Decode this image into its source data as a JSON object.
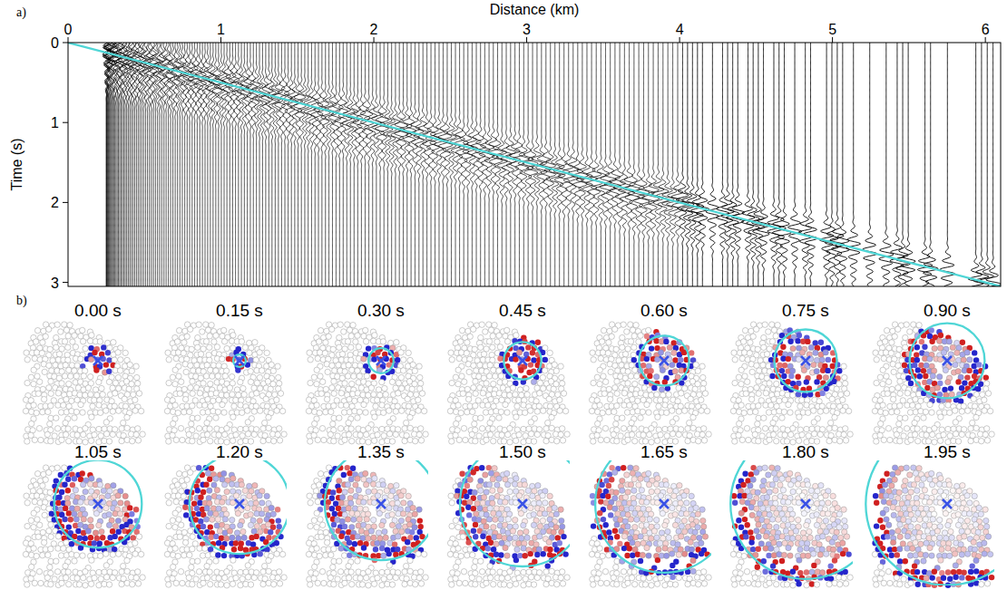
{
  "chart_data": [
    {
      "type": "wiggle",
      "panel_label": "a)",
      "xlabel": "Distance (km)",
      "ylabel": "Time (s)",
      "xlim": [
        0,
        6.1
      ],
      "ylim": [
        0,
        3.05
      ],
      "xticks": [
        0,
        1,
        2,
        3,
        4,
        5,
        6
      ],
      "yticks": [
        0,
        1,
        2,
        3
      ],
      "x": [
        0,
        6.1
      ],
      "values": [
        0,
        3.05
      ],
      "color": "#4fd6d6",
      "line_style": "solid"
    },
    {
      "type": "snapshots",
      "panel_label": "b)",
      "times": [
        {
          "value": 0,
          "label": "0.00 s"
        },
        {
          "value": 0.15,
          "label": "0.15 s"
        },
        {
          "value": 0.3,
          "label": "0.30 s"
        },
        {
          "value": 0.45,
          "label": "0.45 s"
        },
        {
          "value": 0.6,
          "label": "0.60 s"
        },
        {
          "value": 0.75,
          "label": "0.75 s"
        },
        {
          "value": 0.9,
          "label": "0.90 s"
        },
        {
          "value": 1.05,
          "label": "1.05 s"
        },
        {
          "value": 1.2,
          "label": "1.20 s"
        },
        {
          "value": 1.35,
          "label": "1.35 s"
        },
        {
          "value": 1.5,
          "label": "1.50 s"
        },
        {
          "value": 1.65,
          "label": "1.65 s"
        },
        {
          "value": 1.8,
          "label": "1.80 s"
        },
        {
          "value": 1.95,
          "label": "1.95 s"
        }
      ],
      "color": "#4fd6d6",
      "marker": "x"
    }
  ]
}
